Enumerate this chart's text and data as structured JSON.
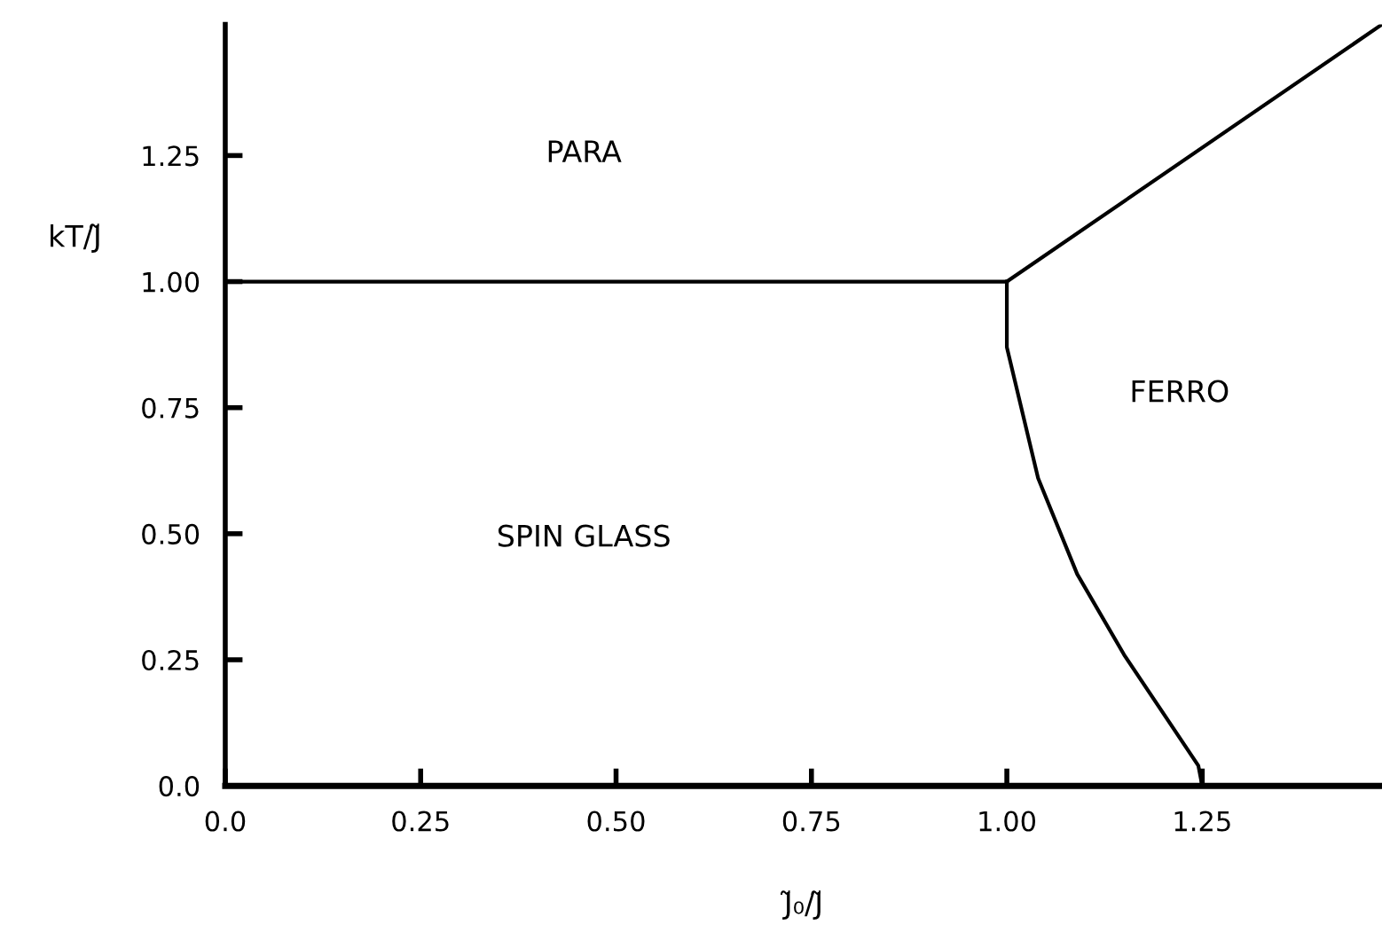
{
  "chart_data": {
    "type": "line",
    "xlabel": "J̃₀/J̃",
    "ylabel": "kT/J̃",
    "xlim": [
      0,
      1.48
    ],
    "ylim": [
      0,
      1.51
    ],
    "xticks": [
      {
        "value": 0,
        "label": "0.0"
      },
      0.25,
      {
        "value": 0.5,
        "label": "0.50"
      },
      0.75,
      {
        "value": 1,
        "label": "1.00"
      },
      1.25
    ],
    "yticks": [
      {
        "value": 0,
        "label": "0.0"
      },
      0.25,
      {
        "value": 0.5,
        "label": "0.50"
      },
      0.75,
      {
        "value": 1,
        "label": "1.00"
      },
      1.25
    ],
    "grid": false,
    "marker": "none",
    "line_style": "solid",
    "series": [
      {
        "color": "#000000",
        "x": [
          0,
          1.0
        ],
        "values": [
          1.0,
          1.0
        ]
      },
      {
        "color": "#000000",
        "x": [
          1.0,
          1.48
        ],
        "values": [
          1.0,
          1.51
        ]
      },
      {
        "color": "#000000",
        "x": [
          1.0,
          1.0,
          1.04,
          1.09,
          1.15,
          1.245,
          1.25
        ],
        "values": [
          1.0,
          0.87,
          0.61,
          0.42,
          0.26,
          0.04,
          0.0
        ]
      }
    ],
    "annotations": [
      "PARA",
      "SPIN GLASS",
      "FERRO"
    ]
  }
}
